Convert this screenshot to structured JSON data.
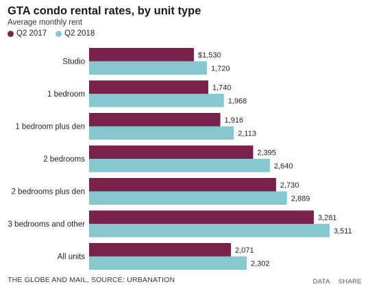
{
  "header": {
    "title": "GTA condo rental rates, by unit type",
    "subtitle": "Average monthly rent"
  },
  "legend": [
    {
      "label": "Q2 2017",
      "color": "#7a2249"
    },
    {
      "label": "Q2 2018",
      "color": "#86c8d0"
    }
  ],
  "footer": {
    "source": "THE GLOBE AND MAIL, SOURCE: URBANATION",
    "data_label": "DATA",
    "share_label": "SHARE"
  },
  "chart_data": {
    "type": "bar",
    "orientation": "horizontal",
    "title": "GTA condo rental rates, by unit type",
    "subtitle": "Average monthly rent",
    "categories": [
      "Studio",
      "1 bedroom",
      "1 bedroom plus den",
      "2 bedrooms",
      "2 bedrooms plus den",
      "3 bedrooms and other",
      "All units"
    ],
    "series": [
      {
        "name": "Q2 2017",
        "color": "#7a2249",
        "values": [
          1530,
          1740,
          1916,
          2395,
          2730,
          3281,
          2071
        ],
        "labels": [
          "$1,530",
          "1,740",
          "1,916",
          "2,395",
          "2,730",
          "3,281",
          "2,071"
        ]
      },
      {
        "name": "Q2 2018",
        "color": "#86c8d0",
        "values": [
          1720,
          1968,
          2113,
          2640,
          2889,
          3511,
          2302
        ],
        "labels": [
          "1,720",
          "1,968",
          "2,113",
          "2,640",
          "2,889",
          "3,511",
          "2,302"
        ]
      }
    ],
    "xlim": [
      0,
      3511
    ],
    "grid": false,
    "axes_visible": false,
    "legend_position": "top-left"
  }
}
